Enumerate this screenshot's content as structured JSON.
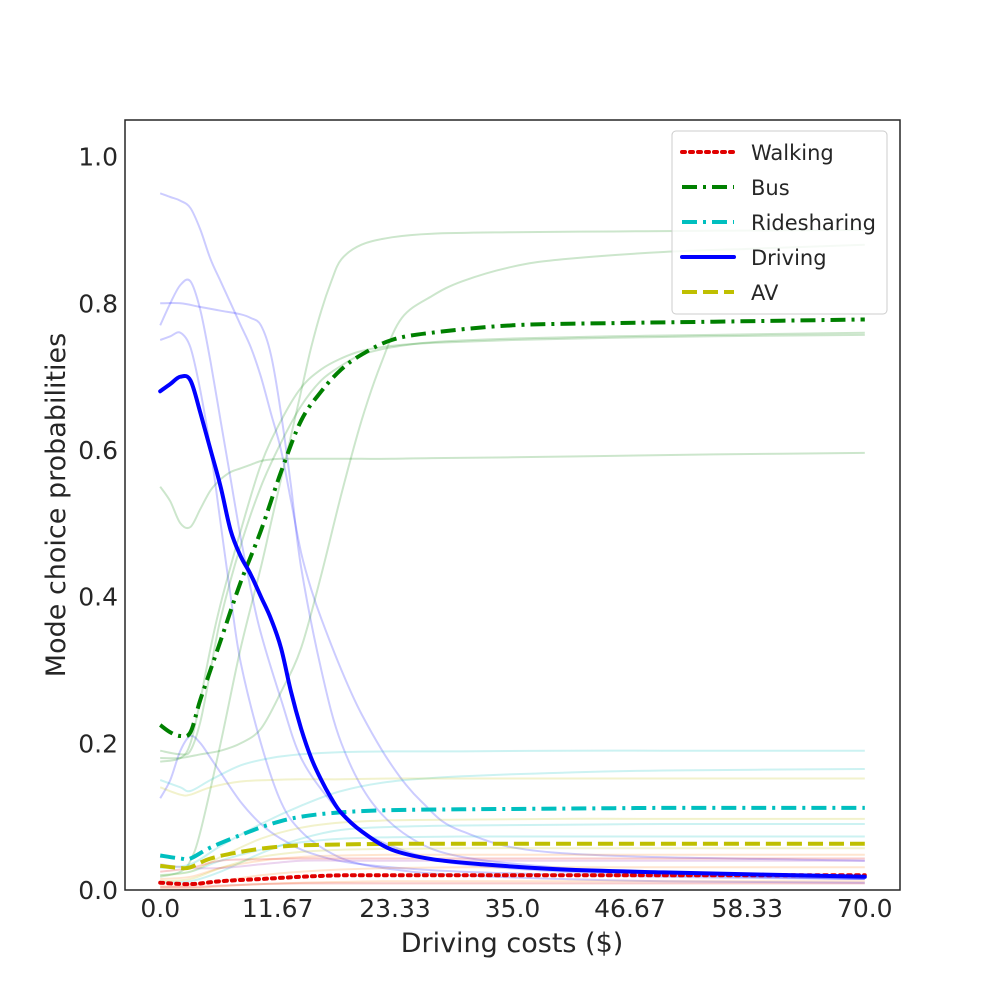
{
  "chart_data": {
    "type": "line",
    "xlabel": "Driving costs ($)",
    "ylabel": "Mode choice probabilities",
    "xlim": [
      -3.5,
      73.5
    ],
    "ylim": [
      0.0,
      1.05
    ],
    "xticks": [
      0.0,
      11.67,
      23.33,
      35.0,
      46.67,
      58.33,
      70.0
    ],
    "xtick_labels": [
      "0.0",
      "11.67",
      "23.33",
      "35.0",
      "46.67",
      "58.33",
      "70.0"
    ],
    "yticks": [
      0.0,
      0.2,
      0.4,
      0.6,
      0.8,
      1.0
    ],
    "ytick_labels": [
      "0.0",
      "0.2",
      "0.4",
      "0.6",
      "0.8",
      "1.0"
    ],
    "grid": false,
    "legend_position": "top-right",
    "series": [
      {
        "name": "Walking",
        "color": "#e00000",
        "style": "dotted",
        "x": [
          0,
          3,
          6,
          10,
          14,
          18,
          23,
          30,
          40,
          50,
          60,
          70
        ],
        "y": [
          0.01,
          0.008,
          0.012,
          0.015,
          0.018,
          0.02,
          0.02,
          0.02,
          0.02,
          0.02,
          0.02,
          0.02
        ]
      },
      {
        "name": "Bus",
        "color": "#008000",
        "style": "dashdot",
        "x": [
          0,
          1,
          2,
          3,
          4,
          6,
          8,
          10,
          12,
          14,
          16,
          18,
          20,
          23,
          27,
          35,
          45,
          55,
          70
        ],
        "y": [
          0.225,
          0.215,
          0.21,
          0.215,
          0.26,
          0.34,
          0.42,
          0.49,
          0.57,
          0.64,
          0.68,
          0.71,
          0.73,
          0.75,
          0.76,
          0.77,
          0.773,
          0.775,
          0.778
        ]
      },
      {
        "name": "Ridesharing",
        "color": "#00bfbf",
        "style": "dashdot",
        "x": [
          0,
          2,
          3,
          5,
          8,
          11,
          14,
          18,
          23,
          30,
          40,
          50,
          60,
          70
        ],
        "y": [
          0.047,
          0.043,
          0.043,
          0.058,
          0.075,
          0.09,
          0.1,
          0.106,
          0.109,
          0.11,
          0.111,
          0.112,
          0.112,
          0.112
        ]
      },
      {
        "name": "Driving",
        "color": "#0000ff",
        "style": "solid",
        "x": [
          0,
          1,
          2,
          3,
          4,
          5,
          6,
          7,
          8,
          9,
          10,
          11,
          12,
          13,
          14,
          15,
          16,
          17,
          18,
          20,
          23,
          27,
          32,
          40,
          50,
          60,
          70
        ],
        "y": [
          0.68,
          0.69,
          0.7,
          0.695,
          0.65,
          0.6,
          0.55,
          0.49,
          0.455,
          0.43,
          0.4,
          0.37,
          0.33,
          0.27,
          0.22,
          0.18,
          0.15,
          0.125,
          0.105,
          0.08,
          0.055,
          0.042,
          0.035,
          0.028,
          0.024,
          0.021,
          0.018
        ]
      },
      {
        "name": "AV",
        "color": "#bfbf00",
        "style": "dashed",
        "x": [
          0,
          2,
          3,
          5,
          8,
          11,
          14,
          18,
          23,
          30,
          40,
          50,
          60,
          70
        ],
        "y": [
          0.033,
          0.03,
          0.031,
          0.043,
          0.052,
          0.058,
          0.061,
          0.062,
          0.063,
          0.063,
          0.063,
          0.063,
          0.063,
          0.063
        ]
      }
    ],
    "background_lines": [
      {
        "color": "#0000ff",
        "x": [
          0,
          1,
          2,
          3,
          4,
          5,
          6,
          7,
          8,
          9,
          10,
          12,
          14,
          17,
          20,
          25,
          30,
          40,
          50,
          70
        ],
        "y": [
          0.77,
          0.8,
          0.825,
          0.83,
          0.79,
          0.72,
          0.64,
          0.56,
          0.48,
          0.41,
          0.35,
          0.26,
          0.18,
          0.12,
          0.08,
          0.05,
          0.035,
          0.025,
          0.02,
          0.015
        ]
      },
      {
        "color": "#0000ff",
        "x": [
          0,
          1,
          2,
          3,
          4,
          5,
          6,
          7,
          8,
          10,
          12,
          14,
          17,
          20,
          25,
          30,
          40,
          50,
          70
        ],
        "y": [
          0.75,
          0.755,
          0.76,
          0.74,
          0.68,
          0.6,
          0.5,
          0.4,
          0.31,
          0.2,
          0.12,
          0.08,
          0.05,
          0.035,
          0.025,
          0.02,
          0.015,
          0.012,
          0.01
        ]
      },
      {
        "color": "#0000ff",
        "x": [
          0,
          2,
          4,
          6,
          8,
          9,
          10,
          11,
          12,
          13,
          14,
          16,
          18,
          21,
          25,
          30,
          40,
          50,
          70
        ],
        "y": [
          0.8,
          0.8,
          0.795,
          0.79,
          0.785,
          0.78,
          0.77,
          0.73,
          0.65,
          0.55,
          0.44,
          0.3,
          0.2,
          0.12,
          0.07,
          0.045,
          0.03,
          0.022,
          0.015
        ]
      },
      {
        "color": "#0000ff",
        "x": [
          0,
          1,
          2,
          3,
          4,
          5,
          6,
          7,
          8,
          9,
          10,
          11,
          12,
          13,
          14,
          15,
          16,
          18,
          20,
          23,
          26,
          30,
          40,
          70
        ],
        "y": [
          0.95,
          0.945,
          0.94,
          0.93,
          0.9,
          0.86,
          0.83,
          0.8,
          0.77,
          0.74,
          0.7,
          0.65,
          0.6,
          0.53,
          0.46,
          0.41,
          0.37,
          0.3,
          0.24,
          0.17,
          0.12,
          0.08,
          0.05,
          0.04
        ]
      },
      {
        "color": "#0000ff",
        "x": [
          0,
          1,
          2,
          3,
          4,
          5,
          6,
          8,
          10,
          12,
          15,
          20,
          30,
          50,
          70
        ],
        "y": [
          0.125,
          0.15,
          0.19,
          0.21,
          0.2,
          0.18,
          0.16,
          0.12,
          0.09,
          0.07,
          0.05,
          0.035,
          0.025,
          0.018,
          0.015
        ]
      },
      {
        "color": "#008000",
        "x": [
          0,
          1,
          2,
          3,
          4,
          5,
          6,
          7,
          8,
          9,
          10,
          11,
          12,
          13,
          14,
          15,
          16,
          17,
          18,
          20,
          23,
          27,
          35,
          45,
          55,
          70
        ],
        "y": [
          0.55,
          0.53,
          0.5,
          0.495,
          0.52,
          0.545,
          0.56,
          0.57,
          0.575,
          0.58,
          0.585,
          0.587,
          0.588,
          0.588,
          0.588,
          0.588,
          0.588,
          0.588,
          0.588,
          0.588,
          0.588,
          0.589,
          0.59,
          0.592,
          0.594,
          0.596
        ]
      },
      {
        "color": "#008000",
        "x": [
          0,
          2,
          3,
          4,
          6,
          8,
          10,
          11,
          12,
          13,
          14,
          15,
          16,
          17,
          18,
          20,
          23,
          27,
          35,
          45,
          55,
          70
        ],
        "y": [
          0.018,
          0.025,
          0.04,
          0.08,
          0.2,
          0.33,
          0.44,
          0.5,
          0.56,
          0.62,
          0.68,
          0.74,
          0.79,
          0.83,
          0.86,
          0.88,
          0.89,
          0.895,
          0.897,
          0.898,
          0.899,
          0.9
        ]
      },
      {
        "color": "#008000",
        "x": [
          0,
          2,
          4,
          6,
          8,
          10,
          12,
          14,
          16,
          18,
          20,
          22,
          24,
          27,
          30,
          35,
          40,
          50,
          60,
          70
        ],
        "y": [
          0.18,
          0.18,
          0.185,
          0.19,
          0.2,
          0.22,
          0.27,
          0.33,
          0.43,
          0.54,
          0.64,
          0.72,
          0.78,
          0.81,
          0.83,
          0.85,
          0.86,
          0.87,
          0.875,
          0.88
        ]
      },
      {
        "color": "#008000",
        "x": [
          0,
          2,
          3,
          4,
          5,
          6,
          8,
          10,
          12,
          14,
          16,
          18,
          20,
          23,
          27,
          35,
          45,
          55,
          70
        ],
        "y": [
          0.175,
          0.18,
          0.2,
          0.26,
          0.33,
          0.39,
          0.49,
          0.58,
          0.64,
          0.685,
          0.71,
          0.725,
          0.735,
          0.742,
          0.746,
          0.75,
          0.753,
          0.755,
          0.757
        ]
      },
      {
        "color": "#008000",
        "x": [
          0,
          2,
          3,
          4,
          5,
          6,
          8,
          10,
          12,
          14,
          16,
          18,
          20,
          23,
          27,
          35,
          45,
          55,
          70
        ],
        "y": [
          0.19,
          0.185,
          0.19,
          0.23,
          0.3,
          0.37,
          0.47,
          0.55,
          0.61,
          0.66,
          0.695,
          0.715,
          0.73,
          0.74,
          0.747,
          0.752,
          0.755,
          0.757,
          0.76
        ]
      },
      {
        "color": "#00bfbf",
        "x": [
          0,
          2,
          3,
          5,
          8,
          11,
          14,
          18,
          23,
          30,
          40,
          50,
          60,
          70
        ],
        "y": [
          0.15,
          0.14,
          0.135,
          0.15,
          0.17,
          0.18,
          0.185,
          0.188,
          0.189,
          0.189,
          0.19,
          0.19,
          0.19,
          0.19
        ]
      },
      {
        "color": "#00bfbf",
        "x": [
          0,
          3,
          6,
          10,
          14,
          18,
          23,
          30,
          40,
          50,
          70
        ],
        "y": [
          0.03,
          0.035,
          0.06,
          0.09,
          0.115,
          0.135,
          0.148,
          0.155,
          0.16,
          0.163,
          0.165
        ]
      },
      {
        "color": "#00bfbf",
        "x": [
          0,
          3,
          6,
          10,
          14,
          18,
          23,
          30,
          40,
          50,
          70
        ],
        "y": [
          0.02,
          0.025,
          0.04,
          0.055,
          0.065,
          0.07,
          0.072,
          0.073,
          0.073,
          0.073,
          0.073
        ]
      },
      {
        "color": "#00bfbf",
        "x": [
          0,
          3,
          6,
          10,
          14,
          18,
          23,
          30,
          40,
          50,
          70
        ],
        "y": [
          0.01,
          0.012,
          0.025,
          0.05,
          0.07,
          0.082,
          0.086,
          0.088,
          0.089,
          0.09,
          0.09
        ]
      },
      {
        "color": "#bfbf00",
        "x": [
          0,
          2,
          3,
          5,
          8,
          11,
          14,
          18,
          23,
          30,
          40,
          50,
          60,
          70
        ],
        "y": [
          0.14,
          0.13,
          0.13,
          0.14,
          0.148,
          0.15,
          0.151,
          0.151,
          0.152,
          0.152,
          0.152,
          0.152,
          0.152,
          0.152
        ]
      },
      {
        "color": "#bfbf00",
        "x": [
          0,
          3,
          6,
          10,
          14,
          18,
          23,
          30,
          40,
          50,
          70
        ],
        "y": [
          0.02,
          0.025,
          0.045,
          0.07,
          0.085,
          0.092,
          0.095,
          0.096,
          0.097,
          0.097,
          0.097
        ]
      },
      {
        "color": "#bfbf00",
        "x": [
          0,
          3,
          6,
          10,
          14,
          18,
          23,
          30,
          40,
          50,
          70
        ],
        "y": [
          0.012,
          0.015,
          0.03,
          0.045,
          0.052,
          0.055,
          0.056,
          0.057,
          0.057,
          0.057,
          0.057
        ]
      },
      {
        "color": "#ff7f0e",
        "x": [
          0,
          3,
          6,
          10,
          14,
          18,
          23,
          30,
          40,
          50,
          70
        ],
        "y": [
          0.015,
          0.018,
          0.03,
          0.04,
          0.045,
          0.047,
          0.048,
          0.048,
          0.048,
          0.048,
          0.048
        ]
      },
      {
        "color": "#ff7f0e",
        "x": [
          0,
          3,
          6,
          10,
          14,
          18,
          23,
          30,
          40,
          50,
          70
        ],
        "y": [
          0.005,
          0.006,
          0.012,
          0.02,
          0.025,
          0.028,
          0.03,
          0.031,
          0.031,
          0.031,
          0.031
        ]
      },
      {
        "color": "#ff7f0e",
        "x": [
          0,
          3,
          6,
          10,
          14,
          18,
          23,
          30,
          40,
          50,
          70
        ],
        "y": [
          0.002,
          0.002,
          0.005,
          0.008,
          0.01,
          0.011,
          0.012,
          0.012,
          0.012,
          0.012,
          0.012
        ]
      },
      {
        "color": "#e00000",
        "x": [
          0,
          3,
          6,
          10,
          14,
          18,
          23,
          30,
          40,
          50,
          70
        ],
        "y": [
          0.025,
          0.03,
          0.04,
          0.042,
          0.043,
          0.043,
          0.043,
          0.043,
          0.043,
          0.043,
          0.043
        ]
      },
      {
        "color": "#e00000",
        "x": [
          0,
          3,
          6,
          10,
          14,
          18,
          23,
          30,
          40,
          50,
          70
        ],
        "y": [
          0.004,
          0.004,
          0.006,
          0.008,
          0.009,
          0.009,
          0.009,
          0.009,
          0.009,
          0.009,
          0.009
        ]
      },
      {
        "color": "#9c27b0",
        "x": [
          0,
          3,
          6,
          10,
          14,
          18,
          23,
          30,
          40,
          50,
          70
        ],
        "y": [
          0.035,
          0.03,
          0.03,
          0.035,
          0.04,
          0.04,
          0.04,
          0.04,
          0.04,
          0.04,
          0.04
        ]
      }
    ]
  }
}
